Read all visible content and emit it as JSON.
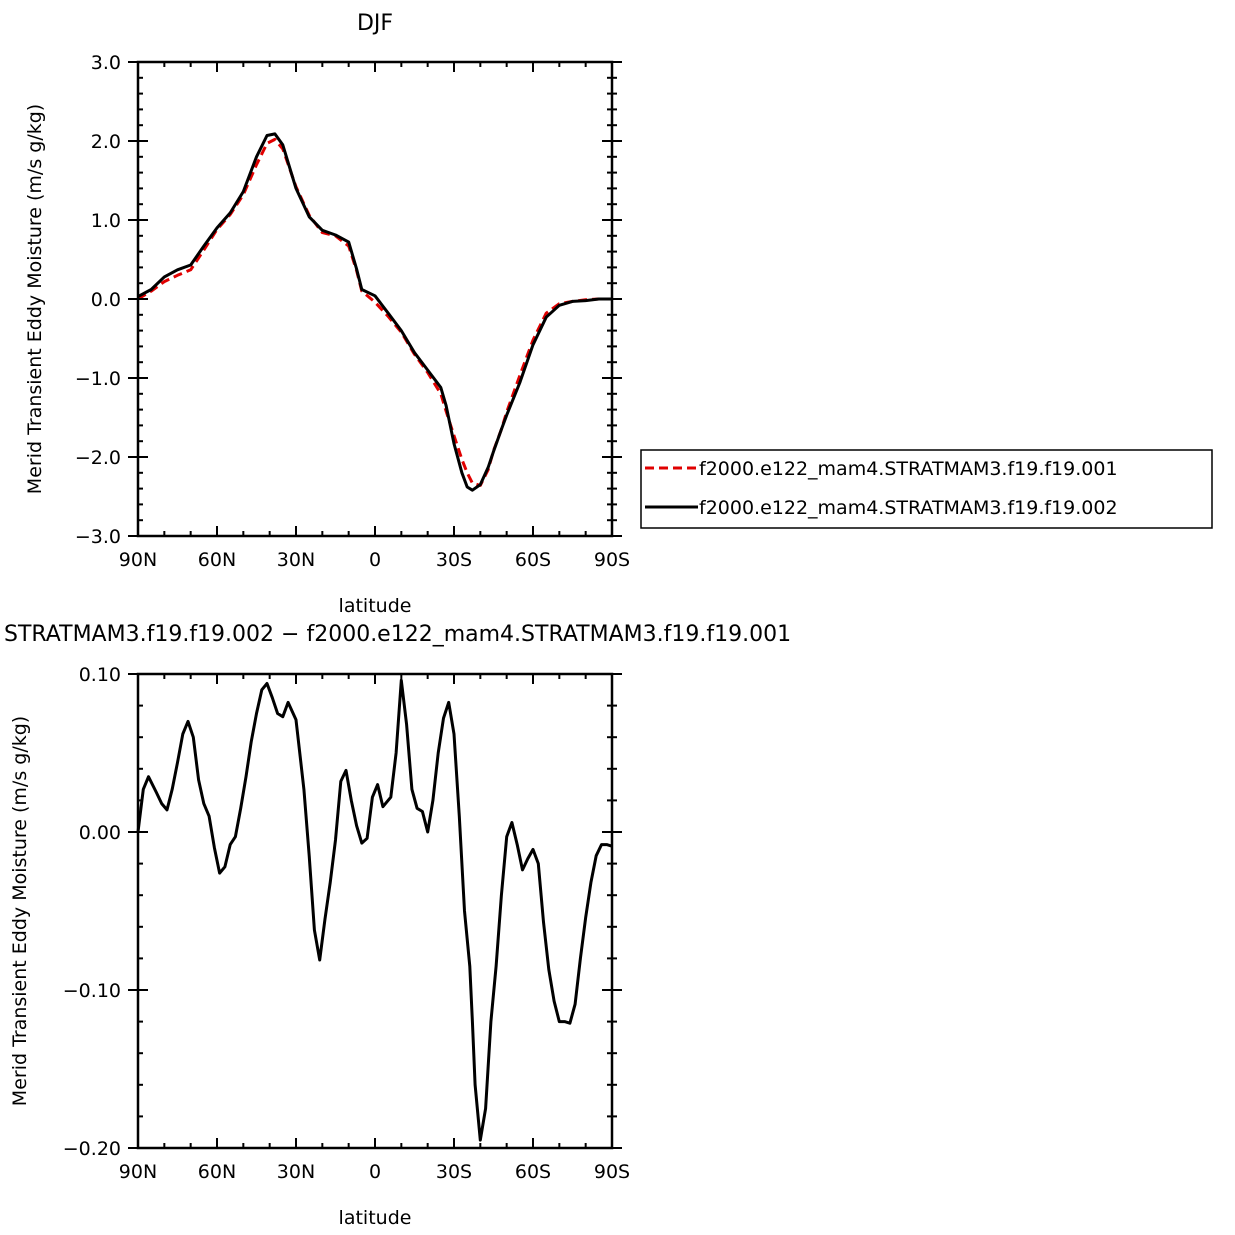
{
  "chart_data": [
    {
      "type": "line",
      "title": "DJF",
      "xlabel": "latitude",
      "ylabel": "Merid Transient Eddy Moisture (m/s g/kg)",
      "xlim": [
        90,
        -90
      ],
      "ylim": [
        -3.0,
        3.0
      ],
      "grid": false,
      "legend_position": "right",
      "x_ticks": [
        {
          "value": 90,
          "label": "90N"
        },
        {
          "value": 60,
          "label": "60N"
        },
        {
          "value": 30,
          "label": "30N"
        },
        {
          "value": 0,
          "label": "0"
        },
        {
          "value": -30,
          "label": "30S"
        },
        {
          "value": -60,
          "label": "60S"
        },
        {
          "value": -90,
          "label": "90S"
        }
      ],
      "y_ticks": [
        {
          "value": 3.0,
          "label": "3.0"
        },
        {
          "value": 2.0,
          "label": "2.0"
        },
        {
          "value": 1.0,
          "label": "1.0"
        },
        {
          "value": 0.0,
          "label": "0.0"
        },
        {
          "value": -1.0,
          "label": "−1.0"
        },
        {
          "value": -2.0,
          "label": "−2.0"
        },
        {
          "value": -3.0,
          "label": "−3.0"
        }
      ],
      "series": [
        {
          "name": "f2000.e122_mam4.STRATMAM3.f19.f19.001",
          "color": "#e00000",
          "dash": "dashed",
          "x": [
            90,
            85,
            80,
            75,
            70,
            65,
            60,
            55,
            50,
            45,
            41,
            38,
            35,
            30,
            25,
            20,
            15,
            10,
            7,
            5,
            0,
            -5,
            -10,
            -15,
            -20,
            -25,
            -27,
            -30,
            -33,
            -35,
            -37,
            -40,
            -43,
            -45,
            -48,
            -50,
            -55,
            -60,
            -65,
            -70,
            -75,
            -80,
            -85,
            -90
          ],
          "y": [
            0.0,
            0.1,
            0.22,
            0.3,
            0.37,
            0.62,
            0.88,
            1.07,
            1.32,
            1.7,
            1.97,
            2.02,
            1.9,
            1.42,
            1.06,
            0.84,
            0.8,
            0.67,
            0.36,
            0.1,
            -0.04,
            -0.22,
            -0.42,
            -0.7,
            -0.93,
            -1.2,
            -1.42,
            -1.73,
            -2.03,
            -2.2,
            -2.33,
            -2.36,
            -2.16,
            -1.92,
            -1.65,
            -1.43,
            -0.97,
            -0.52,
            -0.18,
            -0.06,
            -0.03,
            -0.01,
            0.0,
            0.0
          ]
        },
        {
          "name": "f2000.e122_mam4.STRATMAM3.f19.f19.002",
          "color": "#000000",
          "dash": "solid",
          "x": [
            90,
            85,
            80,
            75,
            70,
            65,
            60,
            55,
            50,
            45,
            41,
            38,
            35,
            30,
            25,
            20,
            15,
            10,
            7,
            5,
            0,
            -5,
            -10,
            -15,
            -20,
            -25,
            -27,
            -30,
            -33,
            -35,
            -37,
            -40,
            -43,
            -45,
            -48,
            -50,
            -55,
            -60,
            -65,
            -70,
            -75,
            -80,
            -85,
            -90
          ],
          "y": [
            0.03,
            0.12,
            0.28,
            0.37,
            0.43,
            0.67,
            0.9,
            1.09,
            1.36,
            1.8,
            2.07,
            2.09,
            1.95,
            1.4,
            1.04,
            0.87,
            0.81,
            0.72,
            0.38,
            0.12,
            0.04,
            -0.18,
            -0.4,
            -0.68,
            -0.9,
            -1.12,
            -1.35,
            -1.83,
            -2.2,
            -2.38,
            -2.42,
            -2.35,
            -2.13,
            -1.93,
            -1.65,
            -1.47,
            -1.06,
            -0.58,
            -0.23,
            -0.08,
            -0.03,
            -0.02,
            0.0,
            0.0
          ]
        }
      ]
    },
    {
      "type": "line",
      "title": "STRATMAM3.f19.f19.002 − f2000.e122_mam4.STRATMAM3.f19.f19.001",
      "xlabel": "latitude",
      "ylabel": "Merid Transient Eddy Moisture (m/s g/kg)",
      "xlim": [
        90,
        -90
      ],
      "ylim": [
        -0.2,
        0.1
      ],
      "grid": false,
      "x_ticks": [
        {
          "value": 90,
          "label": "90N"
        },
        {
          "value": 60,
          "label": "60N"
        },
        {
          "value": 30,
          "label": "30N"
        },
        {
          "value": 0,
          "label": "0"
        },
        {
          "value": -30,
          "label": "30S"
        },
        {
          "value": -60,
          "label": "60S"
        },
        {
          "value": -90,
          "label": "90S"
        }
      ],
      "y_ticks": [
        {
          "value": 0.1,
          "label": "0.10"
        },
        {
          "value": 0.0,
          "label": "0.00"
        },
        {
          "value": -0.1,
          "label": "−0.10"
        },
        {
          "value": -0.2,
          "label": "−0.20"
        }
      ],
      "series": [
        {
          "color": "#000000",
          "dash": "solid",
          "x": [
            90,
            88,
            86,
            83,
            81,
            79,
            77,
            75,
            73,
            71,
            69,
            67,
            65,
            63,
            61,
            59,
            57,
            55,
            53,
            51,
            49,
            47,
            45,
            43,
            41,
            39,
            37,
            35,
            33,
            30,
            27,
            25,
            23,
            21,
            19,
            17,
            15,
            13,
            11,
            9,
            7,
            5,
            3,
            1,
            -1,
            -3,
            -6,
            -8,
            -10,
            -12,
            -14,
            -16,
            -18,
            -20,
            -22,
            -24,
            -26,
            -28,
            -30,
            -32,
            -34,
            -36,
            -37,
            -38,
            -40,
            -42,
            -44,
            -46,
            -48,
            -50,
            -52,
            -54,
            -56,
            -58,
            -60,
            -62,
            -64,
            -66,
            -68,
            -70,
            -72,
            -74,
            -76,
            -78,
            -80,
            -82,
            -84,
            -86,
            -88,
            -90
          ],
          "y": [
            0.0,
            0.027,
            0.035,
            0.025,
            0.018,
            0.014,
            0.027,
            0.044,
            0.062,
            0.07,
            0.06,
            0.033,
            0.018,
            0.01,
            -0.01,
            -0.026,
            -0.022,
            -0.008,
            -0.003,
            0.015,
            0.035,
            0.057,
            0.075,
            0.09,
            0.094,
            0.085,
            0.075,
            0.073,
            0.082,
            0.071,
            0.027,
            -0.015,
            -0.062,
            -0.081,
            -0.055,
            -0.032,
            -0.005,
            0.032,
            0.039,
            0.02,
            0.004,
            -0.007,
            -0.004,
            0.022,
            0.03,
            0.016,
            0.022,
            0.05,
            0.096,
            0.068,
            0.027,
            0.015,
            0.013,
            0.0,
            0.02,
            0.05,
            0.072,
            0.082,
            0.062,
            0.01,
            -0.05,
            -0.085,
            -0.12,
            -0.16,
            -0.195,
            -0.175,
            -0.12,
            -0.085,
            -0.04,
            -0.003,
            0.006,
            -0.008,
            -0.024,
            -0.017,
            -0.011,
            -0.02,
            -0.057,
            -0.087,
            -0.107,
            -0.12,
            -0.12,
            -0.121,
            -0.109,
            -0.08,
            -0.054,
            -0.032,
            -0.015,
            -0.008,
            -0.008,
            -0.009
          ]
        }
      ]
    }
  ]
}
